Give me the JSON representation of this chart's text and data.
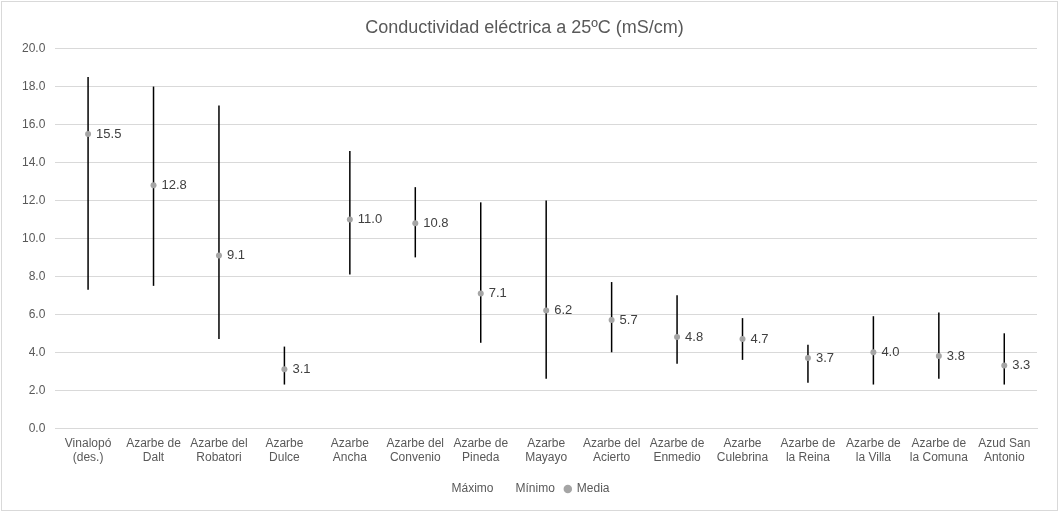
{
  "chart_data": {
    "type": "scatter",
    "title": "Conductividad eléctrica a 25ºC (mS/cm)",
    "categories": [
      "Vinalopó (des.)",
      "Azarbe de Dalt",
      "Azarbe del Robatori",
      "Azarbe Dulce",
      "Azarbe Ancha",
      "Azarbe del Convenio",
      "Azarbe de Pineda",
      "Azarbe Mayayo",
      "Azarbe del Acierto",
      "Azarbe de Enmedio",
      "Azarbe Culebrina",
      "Azarbe de la Reina",
      "Azarbe de la Villa",
      "Azarbe de la Comuna",
      "Azud San Antonio"
    ],
    "series": [
      {
        "name": "Media",
        "marker": "circle",
        "color": "#a5a5a5",
        "values": [
          15.5,
          12.8,
          9.1,
          3.1,
          11.0,
          10.8,
          7.1,
          6.2,
          5.7,
          4.8,
          4.7,
          3.7,
          4.0,
          3.8,
          3.3
        ],
        "errors": [
          [
            7.3,
            18.5
          ],
          [
            7.5,
            18.0
          ],
          [
            4.7,
            17.0
          ],
          [
            2.3,
            4.3
          ],
          [
            8.1,
            14.6
          ],
          [
            9.0,
            12.7
          ],
          [
            4.5,
            11.9
          ],
          [
            2.6,
            12.0
          ],
          [
            4.0,
            7.7
          ],
          [
            3.4,
            7.0
          ],
          [
            3.6,
            5.8
          ],
          [
            2.4,
            4.4
          ],
          [
            2.3,
            5.9
          ],
          [
            2.6,
            6.1
          ],
          [
            2.3,
            5.0
          ]
        ],
        "value_labels": [
          "15.5",
          "12.8",
          "9.1",
          "3.1",
          "11.0",
          "10.8",
          "7.1",
          "6.2",
          "5.7",
          "4.8",
          "4.7",
          "3.7",
          "4.0",
          "3.8",
          "3.3"
        ]
      }
    ],
    "annotations": [
      "Máximo",
      "Mínimo"
    ],
    "ylim": [
      0,
      20
    ],
    "yticks": [
      {
        "value": 0,
        "label": "0.0"
      },
      {
        "value": 2,
        "label": "2.0"
      },
      {
        "value": 4,
        "label": "4.0"
      },
      {
        "value": 6,
        "label": "6.0"
      },
      {
        "value": 8,
        "label": "8.0"
      },
      {
        "value": 10,
        "label": "10.0"
      },
      {
        "value": 12,
        "label": "12.0"
      },
      {
        "value": 14,
        "label": "14.0"
      },
      {
        "value": 16,
        "label": "16.0"
      },
      {
        "value": 18,
        "label": "18.0"
      },
      {
        "value": 20,
        "label": "20.0"
      }
    ],
    "grid": "y",
    "legend": "bottom"
  }
}
